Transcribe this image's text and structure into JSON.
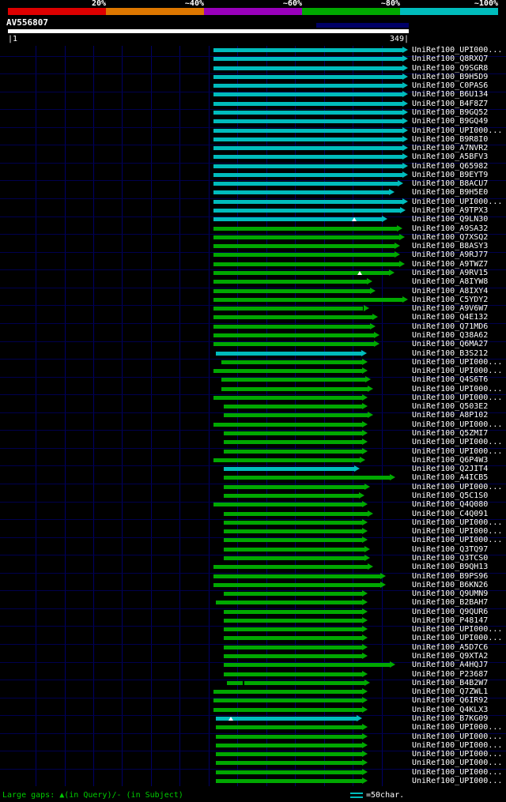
{
  "header": {
    "scale": [
      {
        "label": "20%",
        "color": "#dd0000"
      },
      {
        "label": "~40%",
        "color": "#dd7700"
      },
      {
        "label": "~60%",
        "color": "#9900bb"
      },
      {
        "label": "~80%",
        "color": "#00a800"
      },
      {
        "label": "~100%",
        "color": "#00bcbc"
      }
    ],
    "query_name": "AV556807",
    "query_start_label": "|1",
    "query_end_label": "349|"
  },
  "footer": {
    "gaps_legend": "Large gaps: ▲(in Query)/- (in Subject)",
    "bar_scale_label": "=50char."
  },
  "colors": {
    "cyan": "#00bcbc",
    "green": "#00a800",
    "query_bar": "#ffffff"
  },
  "chart_data": {
    "type": "alignment-overview",
    "title": "BLAST hit distribution overview",
    "query": {
      "name": "AV556807",
      "start": 1,
      "end": 349
    },
    "identity_scale": [
      "20%",
      "~40%",
      "~60%",
      "~80%",
      "~100%"
    ],
    "legend": {
      "gaps": "Large gaps: ▲(in Query)/- (in Subject)",
      "bar_unit": "=50char."
    },
    "hits": [
      {
        "id": "UniRef100_UPI000...",
        "qstart": 179,
        "qend": 348,
        "identity": "cyan"
      },
      {
        "id": "UniRef100_Q8RXQ7",
        "qstart": 179,
        "qend": 348,
        "identity": "cyan"
      },
      {
        "id": "UniRef100_Q9SGR8",
        "qstart": 179,
        "qend": 348,
        "identity": "cyan"
      },
      {
        "id": "UniRef100_B9H5D9",
        "qstart": 179,
        "qend": 348,
        "identity": "cyan"
      },
      {
        "id": "UniRef100_C0PAS6",
        "qstart": 179,
        "qend": 348,
        "identity": "cyan"
      },
      {
        "id": "UniRef100_B6U134",
        "qstart": 179,
        "qend": 348,
        "identity": "cyan"
      },
      {
        "id": "UniRef100_B4F8Z7",
        "qstart": 179,
        "qend": 348,
        "identity": "cyan"
      },
      {
        "id": "UniRef100_B9GQ52",
        "qstart": 179,
        "qend": 348,
        "identity": "cyan"
      },
      {
        "id": "UniRef100_B9GQ49",
        "qstart": 179,
        "qend": 348,
        "identity": "cyan"
      },
      {
        "id": "UniRef100_UPI000...",
        "qstart": 179,
        "qend": 348,
        "identity": "cyan"
      },
      {
        "id": "UniRef100_B9R8I0",
        "qstart": 179,
        "qend": 348,
        "identity": "cyan"
      },
      {
        "id": "UniRef100_A7NVR2",
        "qstart": 179,
        "qend": 348,
        "identity": "cyan"
      },
      {
        "id": "UniRef100_A5BFV3",
        "qstart": 179,
        "qend": 348,
        "identity": "cyan"
      },
      {
        "id": "UniRef100_Q65982",
        "qstart": 179,
        "qend": 348,
        "identity": "cyan"
      },
      {
        "id": "UniRef100_B9EYT9",
        "qstart": 179,
        "qend": 348,
        "identity": "cyan"
      },
      {
        "id": "UniRef100_B8ACU7",
        "qstart": 179,
        "qend": 344,
        "identity": "cyan"
      },
      {
        "id": "UniRef100_B9H5E0",
        "qstart": 179,
        "qend": 336,
        "identity": "cyan"
      },
      {
        "id": "UniRef100_UPI000...",
        "qstart": 179,
        "qend": 348,
        "identity": "cyan"
      },
      {
        "id": "UniRef100_A9TPX3",
        "qstart": 179,
        "qend": 346,
        "identity": "cyan"
      },
      {
        "id": "UniRef100_Q9LN30",
        "qstart": 179,
        "qend": 330,
        "identity": "cyan",
        "markers": [
          {
            "pos": 301,
            "type": "gap_in_query"
          }
        ]
      },
      {
        "id": "UniRef100_A9SA32",
        "qstart": 179,
        "qend": 343,
        "identity": "green"
      },
      {
        "id": "UniRef100_Q7XSQ2",
        "qstart": 179,
        "qend": 345,
        "identity": "green"
      },
      {
        "id": "UniRef100_B8ASY3",
        "qstart": 179,
        "qend": 341,
        "identity": "green"
      },
      {
        "id": "UniRef100_A9RJ77",
        "qstart": 179,
        "qend": 341,
        "identity": "green"
      },
      {
        "id": "UniRef100_A9TWZ7",
        "qstart": 179,
        "qend": 345,
        "identity": "green"
      },
      {
        "id": "UniRef100_A9RV15",
        "qstart": 179,
        "qend": 336,
        "identity": "green",
        "markers": [
          {
            "pos": 306,
            "type": "gap_in_query"
          }
        ]
      },
      {
        "id": "UniRef100_A8IYW8",
        "qstart": 179,
        "qend": 317,
        "identity": "green"
      },
      {
        "id": "UniRef100_A8IXY4",
        "qstart": 179,
        "qend": 320,
        "identity": "green"
      },
      {
        "id": "UniRef100_C5YDY2",
        "qstart": 179,
        "qend": 348,
        "identity": "green"
      },
      {
        "id": "UniRef100_A9V6W7",
        "qstart": 179,
        "qend": 314,
        "identity": "green"
      },
      {
        "id": "UniRef100_Q4E132",
        "qstart": 179,
        "qend": 322,
        "identity": "green"
      },
      {
        "id": "UniRef100_Q71MD6",
        "qstart": 179,
        "qend": 320,
        "identity": "green"
      },
      {
        "id": "UniRef100_Q38A62",
        "qstart": 179,
        "qend": 323,
        "identity": "green"
      },
      {
        "id": "UniRef100_Q6MA27",
        "qstart": 179,
        "qend": 323,
        "identity": "green"
      },
      {
        "id": "UniRef100_B3S212",
        "qstart": 181,
        "qend": 312,
        "identity": "cyan"
      },
      {
        "id": "UniRef100_UPI000...",
        "qstart": 186,
        "qend": 313,
        "identity": "green"
      },
      {
        "id": "UniRef100_UPI000...",
        "qstart": 179,
        "qend": 313,
        "identity": "green"
      },
      {
        "id": "UniRef100_Q4S6T6",
        "qstart": 186,
        "qend": 316,
        "identity": "green"
      },
      {
        "id": "UniRef100_UPI000...",
        "qstart": 186,
        "qend": 318,
        "identity": "green"
      },
      {
        "id": "UniRef100_UPI000...",
        "qstart": 179,
        "qend": 313,
        "identity": "green"
      },
      {
        "id": "UniRef100_Q503E2",
        "qstart": 188,
        "qend": 313,
        "identity": "green"
      },
      {
        "id": "UniRef100_A8P102",
        "qstart": 188,
        "qend": 318,
        "identity": "green"
      },
      {
        "id": "UniRef100_UPI000...",
        "qstart": 179,
        "qend": 313,
        "identity": "green"
      },
      {
        "id": "UniRef100_Q5ZMI7",
        "qstart": 188,
        "qend": 313,
        "identity": "green"
      },
      {
        "id": "UniRef100_UPI000...",
        "qstart": 188,
        "qend": 313,
        "identity": "green"
      },
      {
        "id": "UniRef100_UPI000...",
        "qstart": 188,
        "qend": 313,
        "identity": "green"
      },
      {
        "id": "UniRef100_Q6P4W3",
        "qstart": 179,
        "qend": 311,
        "identity": "green"
      },
      {
        "id": "UniRef100_Q2JIT4",
        "qstart": 188,
        "qend": 306,
        "identity": "cyan"
      },
      {
        "id": "UniRef100_A4ICB5",
        "qstart": 188,
        "qend": 337,
        "identity": "green"
      },
      {
        "id": "UniRef100_UPI000...",
        "qstart": 188,
        "qend": 315,
        "identity": "green"
      },
      {
        "id": "UniRef100_Q5C1S0",
        "qstart": 188,
        "qend": 310,
        "identity": "green"
      },
      {
        "id": "UniRef100_Q4Q080",
        "qstart": 179,
        "qend": 313,
        "identity": "green"
      },
      {
        "id": "UniRef100_C4Q091",
        "qstart": 188,
        "qend": 318,
        "identity": "green"
      },
      {
        "id": "UniRef100_UPI000...",
        "qstart": 188,
        "qend": 313,
        "identity": "green"
      },
      {
        "id": "UniRef100_UPI000...",
        "qstart": 188,
        "qend": 313,
        "identity": "green"
      },
      {
        "id": "UniRef100_UPI000...",
        "qstart": 188,
        "qend": 313,
        "identity": "green"
      },
      {
        "id": "UniRef100_Q3TQ97",
        "qstart": 188,
        "qend": 315,
        "identity": "green"
      },
      {
        "id": "UniRef100_Q3TCS0",
        "qstart": 188,
        "qend": 315,
        "identity": "green"
      },
      {
        "id": "UniRef100_B9QH13",
        "qstart": 179,
        "qend": 318,
        "identity": "green"
      },
      {
        "id": "UniRef100_B9PS96",
        "qstart": 179,
        "qend": 329,
        "identity": "green"
      },
      {
        "id": "UniRef100_B6KN26",
        "qstart": 179,
        "qend": 329,
        "identity": "green"
      },
      {
        "id": "UniRef100_Q9UMN9",
        "qstart": 188,
        "qend": 313,
        "identity": "green"
      },
      {
        "id": "UniRef100_B2BAH7",
        "qstart": 181,
        "qend": 313,
        "identity": "green"
      },
      {
        "id": "UniRef100_Q9QUR6",
        "qstart": 188,
        "qend": 313,
        "identity": "green"
      },
      {
        "id": "UniRef100_P48147",
        "qstart": 188,
        "qend": 313,
        "identity": "green"
      },
      {
        "id": "UniRef100_UPI000...",
        "qstart": 188,
        "qend": 313,
        "identity": "green"
      },
      {
        "id": "UniRef100_UPI000...",
        "qstart": 188,
        "qend": 313,
        "identity": "green"
      },
      {
        "id": "UniRef100_A5D7C6",
        "qstart": 188,
        "qend": 313,
        "identity": "green"
      },
      {
        "id": "UniRef100_Q9XTA2",
        "qstart": 188,
        "qend": 313,
        "identity": "green"
      },
      {
        "id": "UniRef100_A4HQJ7",
        "qstart": 188,
        "qend": 337,
        "identity": "green"
      },
      {
        "id": "UniRef100_P23687",
        "qstart": 188,
        "qend": 313,
        "identity": "green"
      },
      {
        "id": "UniRef100_B4B2W7",
        "qstart": 191,
        "qend": 315,
        "identity": "green",
        "markers": [
          {
            "pos": 207,
            "type": "gap_in_subject"
          }
        ]
      },
      {
        "id": "UniRef100_Q7ZWL1",
        "qstart": 179,
        "qend": 313,
        "identity": "green"
      },
      {
        "id": "UniRef100_Q6IR92",
        "qstart": 179,
        "qend": 313,
        "identity": "green"
      },
      {
        "id": "UniRef100_Q4KLX3",
        "qstart": 179,
        "qend": 313,
        "identity": "green"
      },
      {
        "id": "UniRef100_B7KG09",
        "qstart": 181,
        "qend": 308,
        "identity": "cyan",
        "markers": [
          {
            "pos": 194,
            "type": "gap_in_query"
          }
        ]
      },
      {
        "id": "UniRef100_UPI000...",
        "qstart": 181,
        "qend": 313,
        "identity": "green"
      },
      {
        "id": "UniRef100_UPI000...",
        "qstart": 181,
        "qend": 313,
        "identity": "green"
      },
      {
        "id": "UniRef100_UPI000...",
        "qstart": 181,
        "qend": 313,
        "identity": "green"
      },
      {
        "id": "UniRef100_UPI000...",
        "qstart": 181,
        "qend": 313,
        "identity": "green"
      },
      {
        "id": "UniRef100_UPI000...",
        "qstart": 181,
        "qend": 313,
        "identity": "green"
      },
      {
        "id": "UniRef100_UPI000...",
        "qstart": 181,
        "qend": 313,
        "identity": "green"
      },
      {
        "id": "UniRef100_UPI000...",
        "qstart": 181,
        "qend": 313,
        "identity": "green"
      }
    ]
  }
}
